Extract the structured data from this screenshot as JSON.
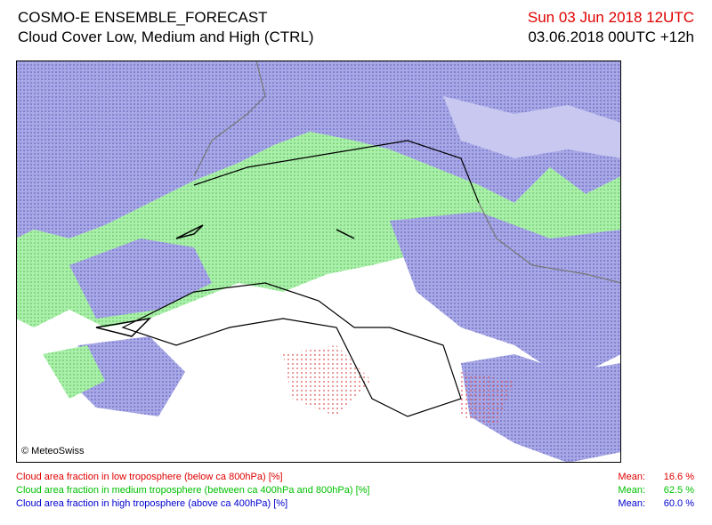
{
  "header": {
    "title": "COSMO-E ENSEMBLE_FORECAST",
    "subtitle": "Cloud Cover Low, Medium and High (CTRL)",
    "valid_time": "Sun 03 Jun 2018 12UTC",
    "run_time": "03.06.2018 00UTC +12h"
  },
  "map": {
    "credit": "© MeteoSwiss"
  },
  "legend": [
    {
      "label": "Cloud area fraction in low troposphere (below ca 800hPa) [%]",
      "mean_label": "Mean:",
      "mean": "16.6 %",
      "color": "#e00000"
    },
    {
      "label": "Cloud area fraction in medium troposphere (between ca 400hPa and 800hPa) [%]",
      "mean_label": "Mean:",
      "mean": "62.5 %",
      "color": "#00c000"
    },
    {
      "label": "Cloud area fraction in high troposphere (above ca 400hPa) [%]",
      "mean_label": "Mean:",
      "mean": "60.0 %",
      "color": "#0000d0"
    }
  ]
}
